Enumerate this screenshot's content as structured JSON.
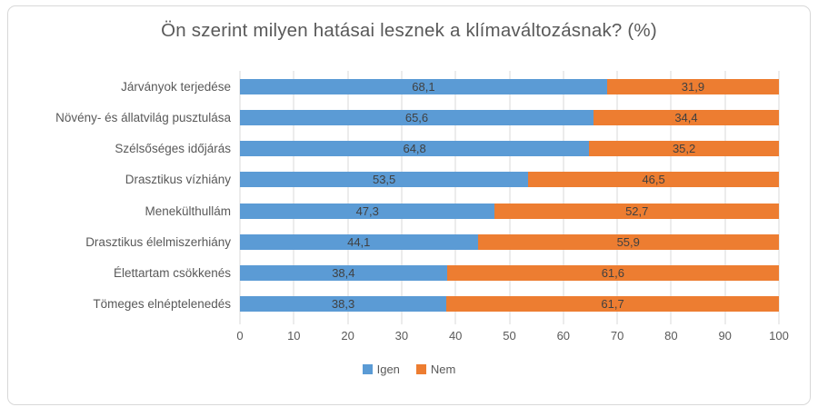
{
  "chart_data": {
    "type": "bar",
    "orientation": "horizontal",
    "stacked": true,
    "title": "Ön szerint milyen hatásai lesznek a klímaváltozásnak? (%)",
    "categories": [
      "Járványok terjedése",
      "Növény- és állatvilág pusztulása",
      "Szélsőséges időjárás",
      "Drasztikus vízhiány",
      "Menekülthullám",
      "Drasztikus élelmiszerhiány",
      "Élettartam csökkenés",
      "Tömeges elnéptelenedés"
    ],
    "series": [
      {
        "name": "Igen",
        "color": "#5B9BD5",
        "values": [
          68.1,
          65.6,
          64.8,
          53.5,
          47.3,
          44.1,
          38.4,
          38.3
        ],
        "labels": [
          "68,1",
          "65,6",
          "64,8",
          "53,5",
          "47,3",
          "44,1",
          "38,4",
          "38,3"
        ]
      },
      {
        "name": "Nem",
        "color": "#ED7D31",
        "values": [
          31.9,
          34.4,
          35.2,
          46.5,
          52.7,
          55.9,
          61.6,
          61.7
        ],
        "labels": [
          "31,9",
          "34,4",
          "35,2",
          "46,5",
          "52,7",
          "55,9",
          "61,6",
          "61,7"
        ]
      }
    ],
    "x_ticks": [
      0,
      10,
      20,
      30,
      40,
      50,
      60,
      70,
      80,
      90,
      100
    ],
    "xlim": [
      0,
      100
    ],
    "grid": true,
    "legend_position": "bottom",
    "colors": {
      "grid": "#D9D9D9",
      "text": "#595959",
      "value_label": "#404040",
      "frame_border": "#D8D8D8"
    }
  }
}
